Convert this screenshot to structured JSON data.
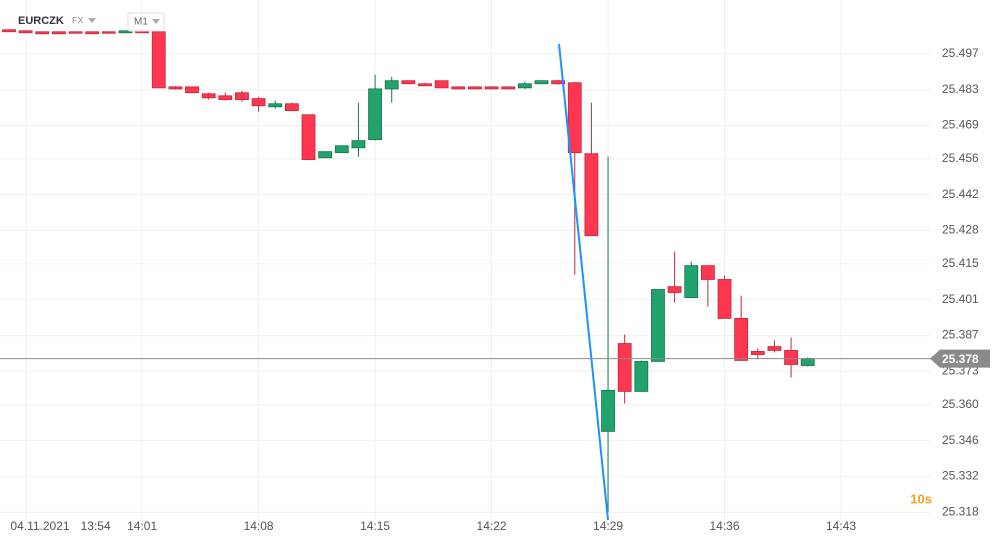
{
  "symbol": "EURCZK",
  "market": "FX",
  "interval": "M1",
  "timer": "10s",
  "chart_data": {
    "type": "candlestick",
    "date_label": "04.11.2021",
    "categories": [
      null,
      "13:54",
      null,
      null,
      null,
      null,
      null,
      null,
      "14:01",
      null,
      null,
      null,
      null,
      null,
      null,
      "14:08",
      null,
      null,
      null,
      null,
      null,
      null,
      "14:15",
      null,
      null,
      null,
      null,
      null,
      null,
      "14:22",
      null,
      null,
      null,
      null,
      null,
      null,
      "14:29",
      null,
      null,
      null,
      null,
      null,
      null,
      "14:36",
      null,
      null,
      null,
      null,
      null,
      null,
      "14:43"
    ],
    "open": [
      25.5064,
      25.506,
      25.5056,
      25.5056,
      25.5056,
      25.5056,
      25.5056,
      25.5052,
      25.506,
      25.5056,
      25.4841,
      25.4841,
      25.4814,
      25.4806,
      25.4818,
      25.4795,
      25.4763,
      25.4775,
      25.4732,
      25.4564,
      25.4584,
      25.4603,
      25.4635,
      25.4833,
      25.4865,
      25.4853,
      25.4865,
      25.4841,
      25.4841,
      25.4841,
      25.4841,
      25.4837,
      25.4853,
      25.4865,
      25.4857,
      25.458,
      25.3496,
      25.3839,
      25.3652,
      25.3769,
      25.4061,
      25.4018,
      25.4143,
      25.4089,
      25.3937,
      25.3808,
      25.3827,
      25.3812,
      25.3753,
      null,
      null
    ],
    "high": [
      25.5064,
      25.506,
      25.5056,
      25.5056,
      25.5056,
      25.5056,
      25.5056,
      25.506,
      25.506,
      25.506,
      25.4845,
      25.4841,
      25.4818,
      25.4818,
      25.4826,
      25.4802,
      25.4787,
      25.4779,
      25.4732,
      25.4588,
      25.4611,
      25.4779,
      25.4888,
      25.488,
      25.4865,
      25.4857,
      25.4865,
      25.4841,
      25.4841,
      25.4841,
      25.4841,
      25.4861,
      25.4865,
      25.4869,
      25.4861,
      25.4779,
      25.4568,
      25.3874,
      25.3773,
      25.405,
      25.4198,
      25.4159,
      25.4143,
      25.4104,
      25.4026,
      25.382,
      25.3851,
      25.3862,
      25.3785,
      null,
      null
    ],
    "low": [
      25.5056,
      25.5052,
      25.5048,
      25.5048,
      25.5052,
      25.5048,
      25.5052,
      25.5052,
      25.5052,
      25.4837,
      25.483,
      25.4818,
      25.4791,
      25.4787,
      25.4783,
      25.4744,
      25.4756,
      25.4748,
      25.4557,
      25.4564,
      25.4584,
      25.4568,
      25.4631,
      25.4779,
      25.4853,
      25.4845,
      25.4837,
      25.4833,
      25.4833,
      25.4833,
      25.4833,
      25.4833,
      25.4853,
      25.4849,
      25.4108,
      25.426,
      25.318,
      25.3605,
      25.3652,
      25.3769,
      25.3999,
      25.4018,
      25.3983,
      25.3937,
      25.3773,
      25.3777,
      25.3804,
      25.3706,
      25.3749,
      null,
      null
    ],
    "close": [
      25.5056,
      25.5052,
      25.5048,
      25.5048,
      25.5052,
      25.5048,
      25.5052,
      25.506,
      25.5052,
      25.4837,
      25.4833,
      25.4818,
      25.4798,
      25.4791,
      25.4791,
      25.4767,
      25.4775,
      25.4748,
      25.4557,
      25.4588,
      25.4611,
      25.4631,
      25.4833,
      25.4865,
      25.4853,
      25.4845,
      25.4837,
      25.4833,
      25.4833,
      25.4833,
      25.4833,
      25.4853,
      25.4865,
      25.4853,
      25.4584,
      25.426,
      25.3656,
      25.3652,
      25.3769,
      25.405,
      25.4038,
      25.4143,
      25.4089,
      25.3937,
      25.3773,
      25.3796,
      25.3812,
      25.3757,
      25.378,
      null,
      null
    ],
    "up_color": "#21a36c",
    "down_color": "#ff3650",
    "last_price": 25.378,
    "ylim": [
      25.315,
      25.518
    ],
    "yticks": [
      25.497,
      25.483,
      25.469,
      25.456,
      25.442,
      25.428,
      25.415,
      25.401,
      25.387,
      25.373,
      {
        "value": 25.36,
        "label": "25.360"
      },
      25.346,
      25.332,
      25.318
    ],
    "grid": true
  }
}
